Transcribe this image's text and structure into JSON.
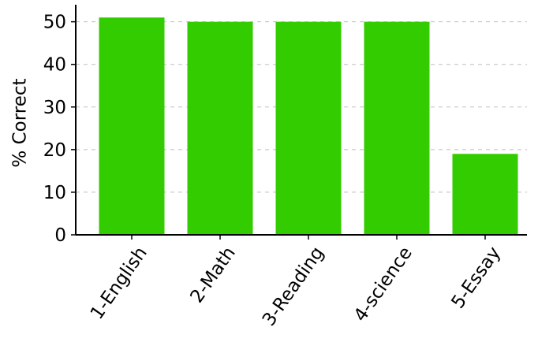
{
  "chart_data": {
    "type": "bar",
    "categories": [
      "1-English",
      "2-Math",
      "3-Reading",
      "4-science",
      "5-Essay"
    ],
    "values": [
      51,
      50,
      50,
      50,
      19
    ],
    "title": "",
    "xlabel": "",
    "ylabel": "% Correct",
    "ylim": [
      0,
      54
    ],
    "yticks": [
      0,
      10,
      20,
      30,
      40,
      50
    ],
    "grid": true,
    "bar_color": "#33cc00",
    "grid_color": "#bfbfbf"
  }
}
